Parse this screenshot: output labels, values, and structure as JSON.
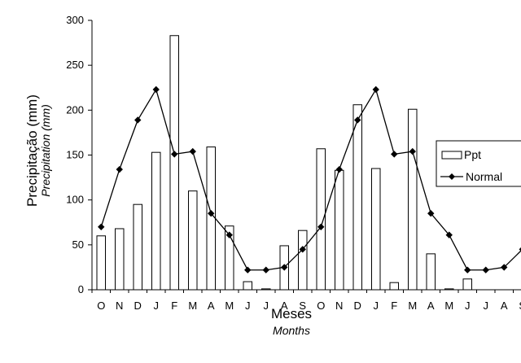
{
  "chart_data": {
    "type": "bar",
    "categories": [
      "O",
      "N",
      "D",
      "J",
      "F",
      "M",
      "A",
      "M",
      "J",
      "J",
      "A",
      "S",
      "O",
      "N",
      "D",
      "J",
      "F",
      "M",
      "A",
      "M",
      "J",
      "J",
      "A",
      "S"
    ],
    "series": [
      {
        "name": "Ppt",
        "type": "bar",
        "values": [
          60,
          68,
          95,
          153,
          283,
          110,
          159,
          71,
          9,
          1,
          49,
          66,
          157,
          133,
          206,
          135,
          8,
          201,
          40,
          1,
          12,
          0,
          0,
          0
        ]
      },
      {
        "name": "Normal",
        "type": "line",
        "values": [
          70,
          134,
          189,
          223,
          151,
          154,
          85,
          61,
          22,
          22,
          25,
          45,
          70,
          134,
          189,
          223,
          151,
          154,
          85,
          61,
          22,
          22,
          25,
          45
        ]
      }
    ],
    "ylabel": "Precipitação (mm)",
    "ylabel_en": "Precipitation (mm)",
    "xlabel": "Meses",
    "xlabel_en": "Months",
    "ylim": [
      0,
      300
    ],
    "yticks": [
      0,
      50,
      100,
      150,
      200,
      250,
      300
    ],
    "grid": false,
    "legend_position": "right",
    "colors": {
      "bar_fill": "#ffffff",
      "bar_stroke": "#000000",
      "line": "#000000"
    }
  }
}
